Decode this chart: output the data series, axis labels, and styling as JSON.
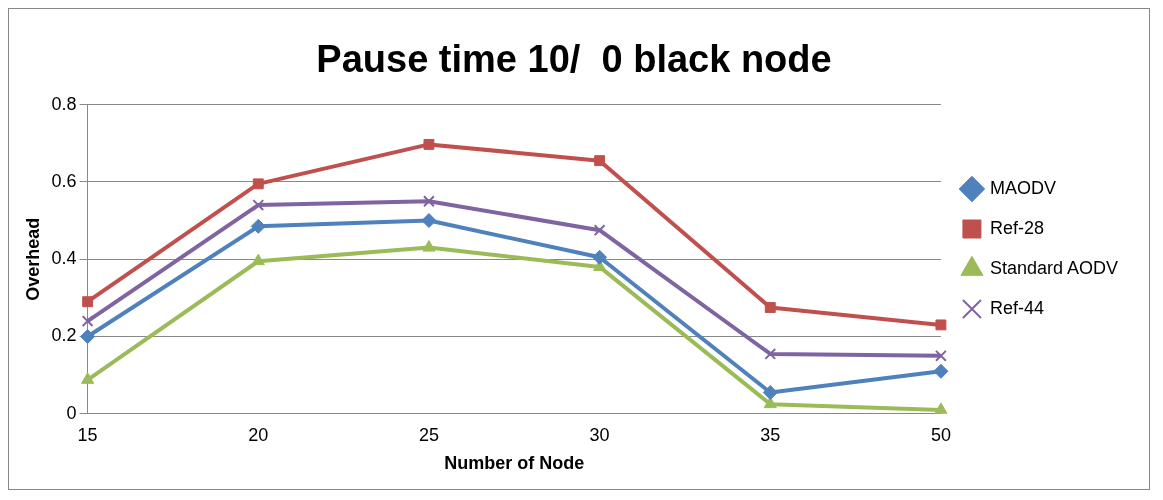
{
  "chart_data": {
    "type": "line",
    "title": "Pause time 10/  0 black node",
    "xlabel": "Number of Node",
    "ylabel": "Overhead",
    "categories": [
      "15",
      "20",
      "25",
      "30",
      "35",
      "50"
    ],
    "series": [
      {
        "name": "MAODV",
        "color": "#4f81bd",
        "marker": "diamond",
        "values": [
          0.2,
          0.485,
          0.5,
          0.405,
          0.055,
          0.11
        ]
      },
      {
        "name": "Ref-28",
        "color": "#c0504d",
        "marker": "square",
        "values": [
          0.29,
          0.595,
          0.697,
          0.655,
          0.275,
          0.23
        ]
      },
      {
        "name": "Standard AODV",
        "color": "#9bbb59",
        "marker": "triangle",
        "values": [
          0.088,
          0.395,
          0.43,
          0.38,
          0.025,
          0.01
        ]
      },
      {
        "name": "Ref-44",
        "color": "#8064a2",
        "marker": "cross",
        "values": [
          0.24,
          0.54,
          0.55,
          0.475,
          0.155,
          0.15
        ]
      }
    ],
    "ylim": [
      0,
      0.8
    ],
    "yticks": [
      0,
      0.2,
      0.4,
      0.6,
      0.8
    ],
    "grid": "y",
    "legend": "right",
    "line_style": "solid"
  }
}
